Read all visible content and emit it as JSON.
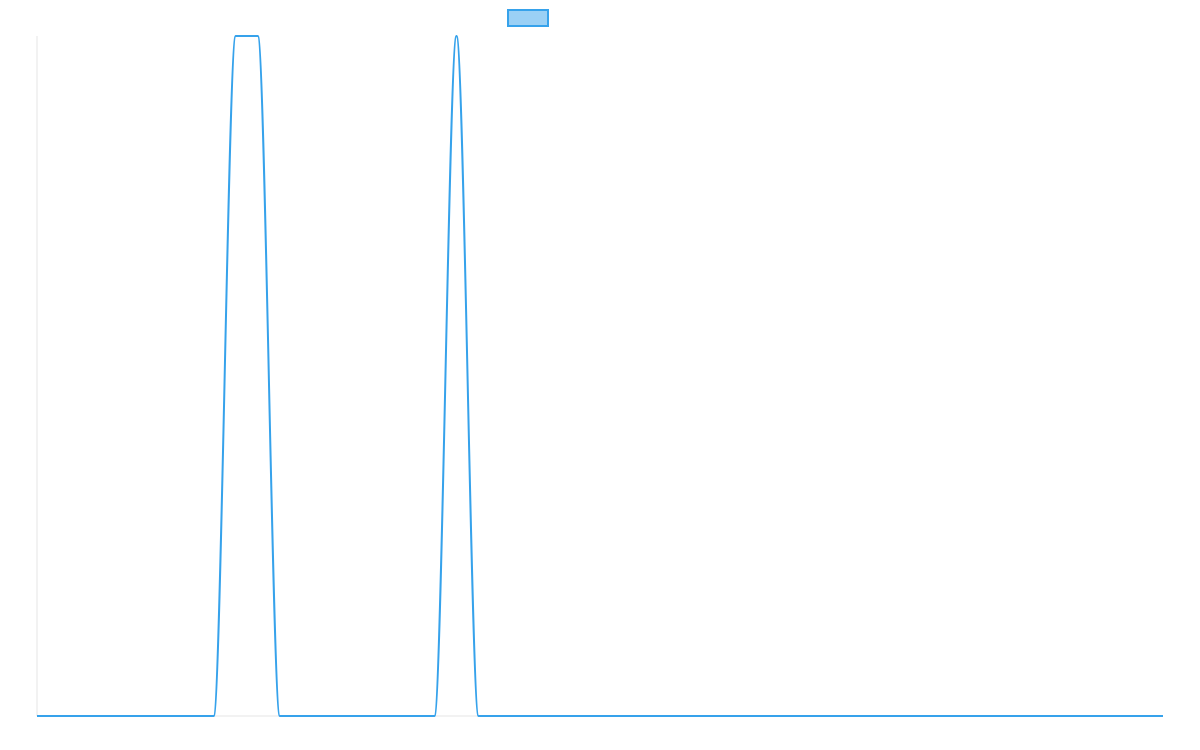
{
  "chart_data": {
    "type": "line",
    "title": "",
    "xlabel": "",
    "ylabel": "",
    "grid": false,
    "legend": "top-center",
    "xlim": [
      0,
      51
    ],
    "ylim": [
      0,
      1
    ],
    "series": [
      {
        "color": "#36a2eb",
        "fill": "#9ad0f5",
        "x": [
          0,
          1,
          2,
          3,
          4,
          5,
          6,
          7,
          8,
          9,
          10,
          11,
          12,
          13,
          14,
          15,
          16,
          17,
          18,
          19,
          20,
          21,
          22,
          23,
          24,
          25,
          26,
          27,
          28,
          29,
          30,
          31,
          32,
          33,
          34,
          35,
          36,
          37,
          38,
          39,
          40,
          41,
          42,
          43,
          44,
          45,
          46,
          47,
          48,
          49,
          50,
          51
        ],
        "y": [
          0,
          0,
          0,
          0,
          0,
          0,
          0,
          0,
          0,
          1,
          1,
          0,
          0,
          0,
          0,
          0,
          0,
          0,
          0,
          1,
          0,
          0,
          0,
          0,
          0,
          0,
          0,
          0,
          0,
          0,
          0,
          0,
          0,
          0,
          0,
          0,
          0,
          0,
          0,
          0,
          0,
          0,
          0,
          0,
          0,
          0,
          0,
          0,
          0,
          0,
          0,
          0
        ]
      }
    ]
  }
}
